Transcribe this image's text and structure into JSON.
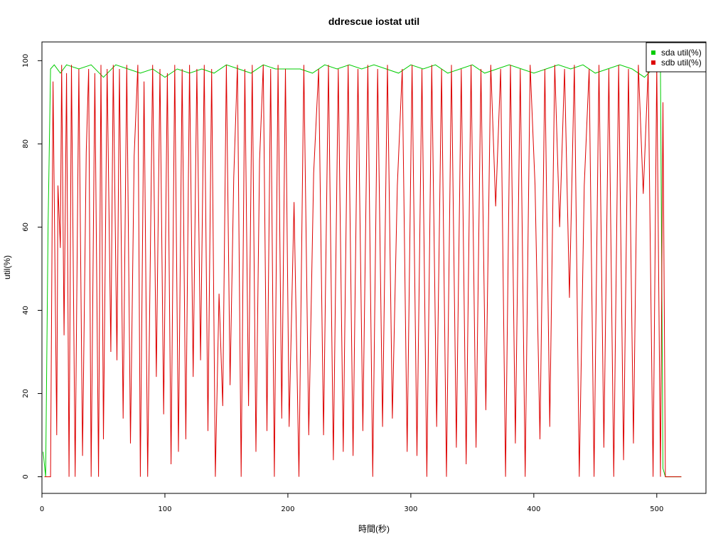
{
  "chart_data": {
    "type": "line",
    "title": "ddrescue iostat util",
    "xlabel": "時間(秒)",
    "ylabel": "util(%)",
    "xlim": [
      0,
      540
    ],
    "ylim": [
      -4,
      104.5
    ],
    "x_ticks": [
      "0",
      "100",
      "200",
      "300",
      "400",
      "500"
    ],
    "y_ticks": [
      "0",
      "20",
      "40",
      "60",
      "80",
      "100"
    ],
    "grid": false,
    "legend_position": "top-right",
    "series": [
      {
        "name": "sda util(%)",
        "color": "#00cc00",
        "x": [
          1,
          3,
          5,
          7,
          10,
          15,
          20,
          30,
          40,
          50,
          60,
          70,
          80,
          90,
          100,
          110,
          120,
          130,
          140,
          150,
          160,
          170,
          180,
          190,
          200,
          210,
          220,
          230,
          240,
          250,
          260,
          270,
          280,
          290,
          300,
          310,
          320,
          330,
          340,
          350,
          360,
          370,
          380,
          390,
          400,
          410,
          420,
          430,
          440,
          450,
          460,
          470,
          480,
          490,
          500,
          503,
          505,
          507,
          520
        ],
        "values": [
          6,
          0,
          60,
          98,
          99,
          97,
          99,
          98,
          99,
          96,
          99,
          98,
          97,
          98,
          96,
          98,
          97,
          98,
          97,
          99,
          98,
          97,
          99,
          98,
          98,
          98,
          97,
          99,
          98,
          99,
          98,
          99,
          98,
          97,
          99,
          98,
          99,
          97,
          98,
          99,
          97,
          98,
          99,
          98,
          97,
          98,
          99,
          98,
          99,
          97,
          98,
          99,
          98,
          96,
          99,
          98,
          2,
          0,
          0
        ]
      },
      {
        "name": "sdb util(%)",
        "color": "#dd0000",
        "x": [
          2,
          4,
          6,
          7,
          9,
          12,
          13,
          15,
          16,
          18,
          20,
          22,
          24,
          27,
          30,
          33,
          36,
          38,
          40,
          43,
          46,
          48,
          50,
          53,
          56,
          58,
          61,
          63,
          66,
          69,
          72,
          75,
          78,
          80,
          83,
          86,
          90,
          93,
          96,
          99,
          102,
          105,
          108,
          111,
          114,
          117,
          120,
          123,
          126,
          129,
          132,
          135,
          138,
          141,
          144,
          147,
          150,
          153,
          156,
          159,
          162,
          165,
          168,
          171,
          174,
          177,
          180,
          183,
          186,
          189,
          192,
          195,
          198,
          201,
          205,
          209,
          213,
          217,
          221,
          225,
          229,
          233,
          237,
          241,
          245,
          249,
          253,
          257,
          261,
          265,
          269,
          273,
          277,
          281,
          285,
          289,
          293,
          297,
          301,
          305,
          309,
          313,
          317,
          321,
          325,
          329,
          333,
          337,
          341,
          345,
          349,
          353,
          357,
          361,
          365,
          369,
          373,
          377,
          381,
          385,
          389,
          393,
          397,
          401,
          405,
          409,
          413,
          417,
          421,
          425,
          429,
          433,
          437,
          441,
          445,
          449,
          453,
          457,
          461,
          465,
          469,
          473,
          477,
          481,
          485,
          489,
          493,
          497,
          500,
          503,
          505,
          507,
          520
        ],
        "values": [
          0,
          0,
          0,
          0,
          95,
          10,
          70,
          55,
          99,
          34,
          97,
          0,
          99,
          0,
          98,
          5,
          78,
          98,
          0,
          97,
          0,
          99,
          9,
          98,
          30,
          99,
          28,
          98,
          14,
          99,
          8,
          77,
          99,
          0,
          95,
          0,
          99,
          24,
          98,
          15,
          97,
          3,
          99,
          6,
          98,
          9,
          99,
          24,
          98,
          28,
          99,
          11,
          98,
          0,
          44,
          17,
          99,
          22,
          72,
          99,
          0,
          98,
          17,
          99,
          6,
          76,
          99,
          11,
          98,
          0,
          99,
          14,
          98,
          12,
          66,
          0,
          99,
          10,
          73,
          98,
          10,
          99,
          4,
          98,
          6,
          99,
          5,
          98,
          11,
          99,
          0,
          98,
          12,
          99,
          14,
          70,
          98,
          6,
          99,
          5,
          98,
          0,
          99,
          12,
          98,
          0,
          99,
          7,
          98,
          3,
          99,
          7,
          98,
          16,
          99,
          65,
          98,
          0,
          99,
          8,
          98,
          0,
          99,
          70,
          9,
          98,
          12,
          99,
          60,
          98,
          43,
          99,
          0,
          70,
          98,
          0,
          99,
          7,
          98,
          0,
          99,
          4,
          98,
          8,
          99,
          68,
          98,
          0,
          99,
          0,
          90,
          0,
          0
        ]
      }
    ]
  }
}
